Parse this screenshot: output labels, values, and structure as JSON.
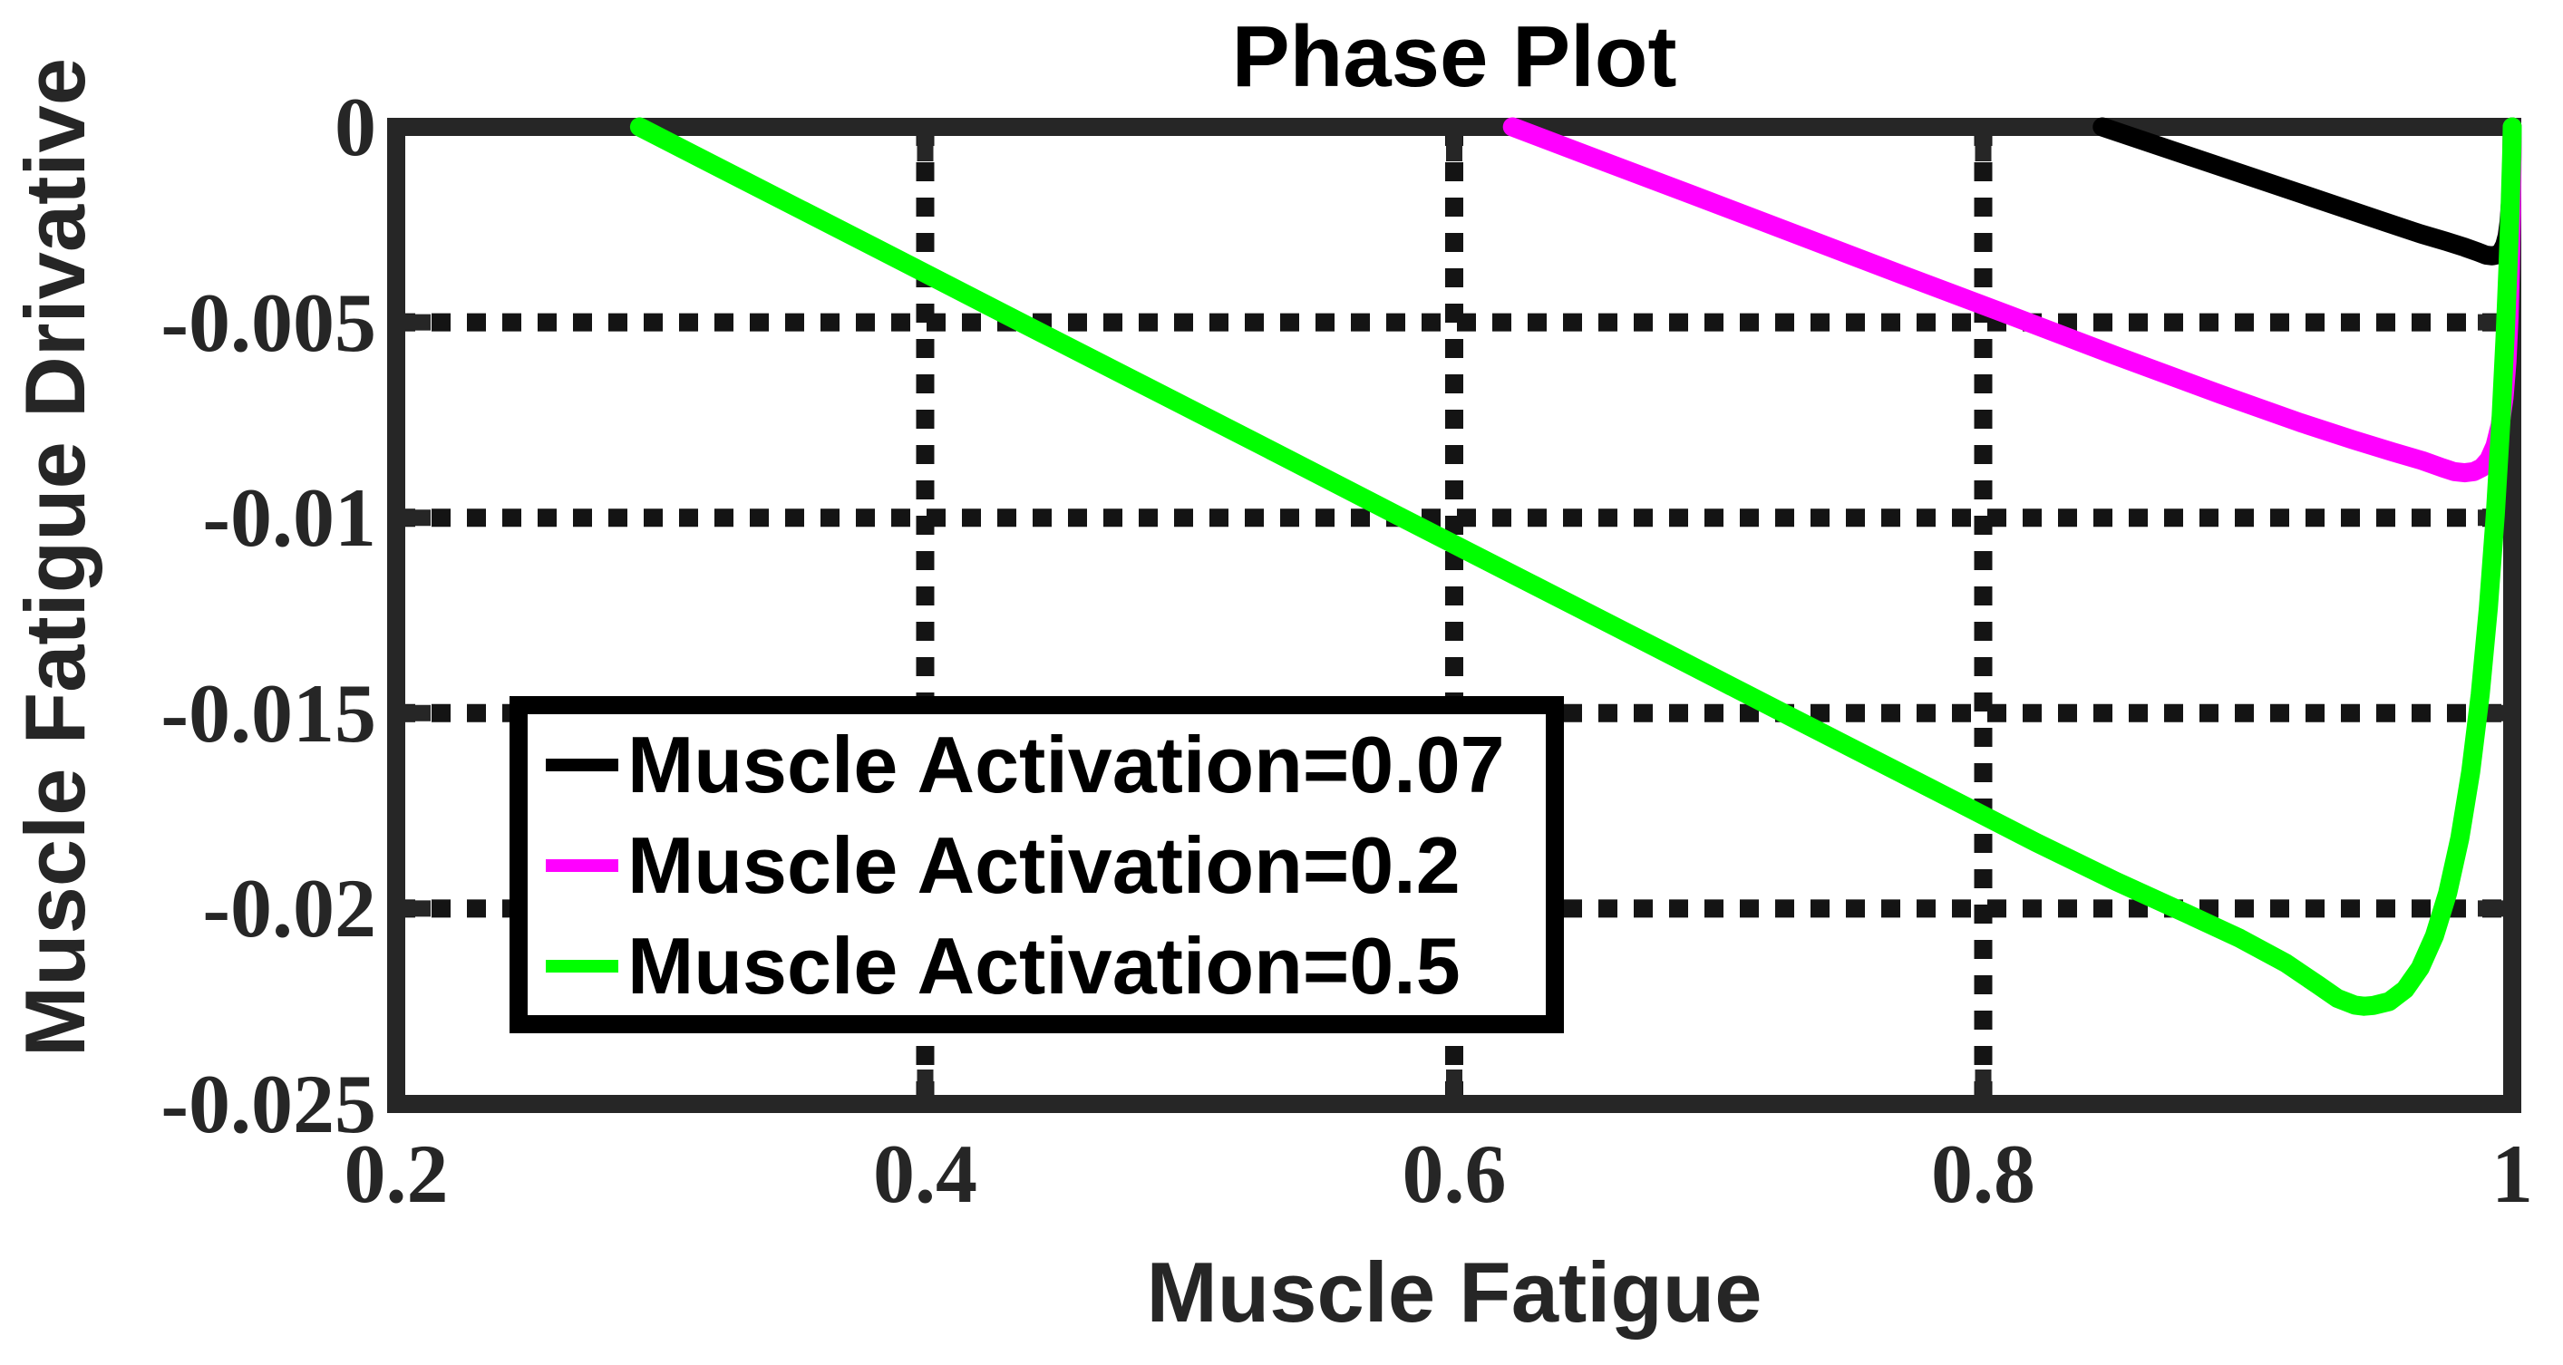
{
  "chart": {
    "title": "Phase Plot",
    "xlabel": "Muscle Fatigue",
    "ylabel": "Muscle Fatigue Drivative"
  },
  "chart_data": {
    "type": "line",
    "title": "Phase Plot",
    "xlabel": "Muscle Fatigue",
    "ylabel": "Muscle Fatigue Drivative",
    "xlim": [
      0.2,
      1
    ],
    "ylim": [
      -0.025,
      0
    ],
    "grid": "on",
    "grid_style": "dotted",
    "grid_x": [
      0.4,
      0.6,
      0.8
    ],
    "grid_y": [
      -0.005,
      -0.01,
      -0.015,
      -0.02
    ],
    "xticks": {
      "values": [
        0.2,
        0.4,
        0.6,
        0.8,
        1
      ],
      "labels": [
        "0.2",
        "0.4",
        "0.6",
        "0.8",
        "1"
      ]
    },
    "yticks": {
      "values": [
        0,
        -0.005,
        -0.01,
        -0.015,
        -0.02,
        -0.025
      ],
      "labels": [
        "0",
        "-0.005",
        "-0.01",
        "-0.015",
        "-0.02",
        "-0.025"
      ]
    },
    "legend_position": "inside-left-center",
    "axis_color": "#262626",
    "grid_color": "#141414",
    "series": [
      {
        "name": "Muscle Activation=0.07",
        "color": "#000000",
        "points": [
          [
            0.845,
            0
          ],
          [
            0.87,
            -0.00057
          ],
          [
            0.9,
            -0.00125
          ],
          [
            0.925,
            -0.00182
          ],
          [
            0.95,
            -0.00239
          ],
          [
            0.965,
            -0.00273
          ],
          [
            0.975,
            -0.00293
          ],
          [
            0.982,
            -0.00308
          ],
          [
            0.987,
            -0.0032
          ],
          [
            0.99,
            -0.00328
          ],
          [
            0.9925,
            -0.0033
          ],
          [
            0.9945,
            -0.00327
          ],
          [
            0.996,
            -0.00318
          ],
          [
            0.9972,
            -0.00302
          ],
          [
            0.9981,
            -0.00278
          ],
          [
            0.9988,
            -0.00243
          ],
          [
            0.9993,
            -0.00196
          ],
          [
            0.99965,
            -0.0014
          ],
          [
            0.99985,
            -0.0008
          ],
          [
            1,
            0
          ]
        ]
      },
      {
        "name": "Muscle Activation=0.2",
        "color": "#FF00FF",
        "points": [
          [
            0.622,
            0
          ],
          [
            0.65,
            -0.00072
          ],
          [
            0.69,
            -0.00174
          ],
          [
            0.73,
            -0.00277
          ],
          [
            0.77,
            -0.0038
          ],
          [
            0.81,
            -0.00482
          ],
          [
            0.85,
            -0.00585
          ],
          [
            0.89,
            -0.00685
          ],
          [
            0.92,
            -0.00757
          ],
          [
            0.94,
            -0.00801
          ],
          [
            0.955,
            -0.00832
          ],
          [
            0.966,
            -0.00854
          ],
          [
            0.9735,
            -0.00872
          ],
          [
            0.978,
            -0.00882
          ],
          [
            0.982,
            -0.00885
          ],
          [
            0.9855,
            -0.00882
          ],
          [
            0.9885,
            -0.00872
          ],
          [
            0.9912,
            -0.00851
          ],
          [
            0.9935,
            -0.00816
          ],
          [
            0.9954,
            -0.00764
          ],
          [
            0.9969,
            -0.00693
          ],
          [
            0.998,
            -0.00601
          ],
          [
            0.9988,
            -0.00486
          ],
          [
            0.9993,
            -0.00361
          ],
          [
            0.9997,
            -0.00224
          ],
          [
            0.9999,
            -0.0011
          ],
          [
            1,
            0
          ]
        ]
      },
      {
        "name": "Muscle Activation=0.5",
        "color": "#00FF00",
        "points": [
          [
            0.292,
            0
          ],
          [
            0.33,
            -0.00132
          ],
          [
            0.38,
            -0.00305
          ],
          [
            0.43,
            -0.00479
          ],
          [
            0.48,
            -0.00652
          ],
          [
            0.53,
            -0.00825
          ],
          [
            0.58,
            -0.00999
          ],
          [
            0.63,
            -0.01172
          ],
          [
            0.68,
            -0.01345
          ],
          [
            0.73,
            -0.01519
          ],
          [
            0.78,
            -0.01692
          ],
          [
            0.82,
            -0.01831
          ],
          [
            0.85,
            -0.0193
          ],
          [
            0.875,
            -0.02007
          ],
          [
            0.897,
            -0.02076
          ],
          [
            0.9145,
            -0.0214
          ],
          [
            0.9265,
            -0.02195
          ],
          [
            0.934,
            -0.0223
          ],
          [
            0.9405,
            -0.02247
          ],
          [
            0.944,
            -0.0225
          ],
          [
            0.9475,
            -0.02248
          ],
          [
            0.9535,
            -0.02238
          ],
          [
            0.9595,
            -0.02207
          ],
          [
            0.9652,
            -0.02152
          ],
          [
            0.9706,
            -0.0207
          ],
          [
            0.9756,
            -0.0196
          ],
          [
            0.9802,
            -0.0182
          ],
          [
            0.9843,
            -0.0165
          ],
          [
            0.9879,
            -0.01452
          ],
          [
            0.991,
            -0.0123
          ],
          [
            0.9936,
            -0.00993
          ],
          [
            0.9957,
            -0.00753
          ],
          [
            0.9973,
            -0.00538
          ],
          [
            0.9984,
            -0.0036
          ],
          [
            0.9991,
            -0.00224
          ],
          [
            0.9996,
            -0.00116
          ],
          [
            0.9999,
            -0.00045
          ],
          [
            1,
            0
          ]
        ]
      }
    ]
  }
}
